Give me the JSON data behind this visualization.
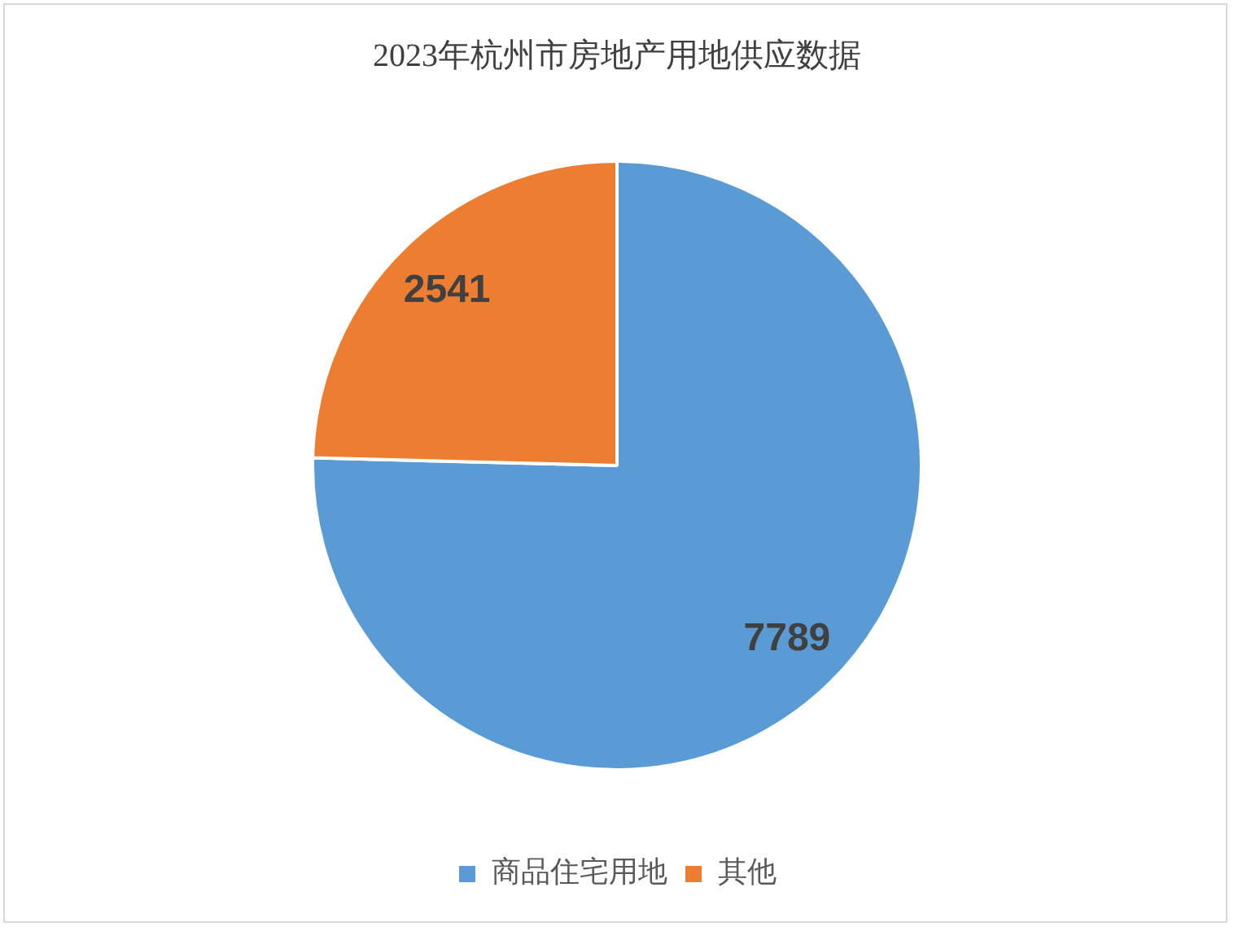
{
  "chart_data": {
    "type": "pie",
    "title": "2023年杭州市房地产用地供应数据",
    "categories": [
      "商品住宅用地",
      "其他"
    ],
    "values": [
      7789,
      2541
    ],
    "colors": [
      "#5b9bd5",
      "#ed7d31"
    ],
    "data_labels": true,
    "legend": "bottom"
  }
}
